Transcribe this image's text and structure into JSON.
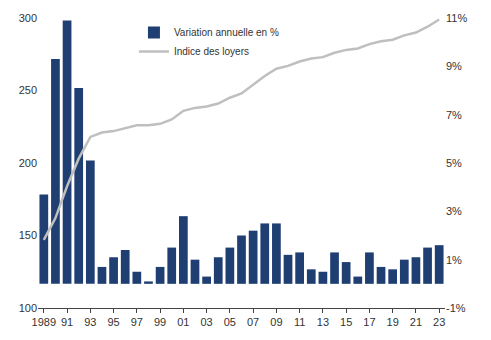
{
  "chart_data": {
    "type": "bar",
    "categories": [
      "1989",
      null,
      "91",
      null,
      "93",
      null,
      "95",
      null,
      "97",
      null,
      "99",
      null,
      "01",
      null,
      "03",
      null,
      "05",
      null,
      "07",
      null,
      "09",
      null,
      "11",
      null,
      "13",
      null,
      "15",
      null,
      "17",
      null,
      "19",
      null,
      "21",
      null,
      "23"
    ],
    "series": [
      {
        "name": "Variation annuelle en %",
        "type": "bar",
        "axis": "y2",
        "color": "#1F3F73",
        "values": [
          3.7,
          9.3,
          10.9,
          8.1,
          5.1,
          0.7,
          1.1,
          1.4,
          0.5,
          0.1,
          0.7,
          1.5,
          2.8,
          1.0,
          0.3,
          1.1,
          1.5,
          2.0,
          2.2,
          2.5,
          2.5,
          1.2,
          1.3,
          0.6,
          0.5,
          1.3,
          0.9,
          0.3,
          1.3,
          0.7,
          0.6,
          1.0,
          1.1,
          1.5,
          1.6
        ]
      },
      {
        "name": "Indice des loyers",
        "type": "line",
        "color": "#BFBFBF",
        "values": [
          147,
          162,
          184,
          203,
          218,
          221,
          222,
          224,
          226,
          226,
          227,
          230,
          236,
          238,
          239,
          241,
          245,
          248,
          254,
          260,
          265,
          267,
          270,
          272,
          273,
          276,
          278,
          279,
          282,
          284,
          285,
          288,
          290,
          294,
          299
        ]
      }
    ],
    "ylim": [
      100,
      300
    ],
    "yticks": [
      100,
      150,
      200,
      250,
      300
    ],
    "y2lim": [
      -1,
      11
    ],
    "y2ticks": [
      {
        "value": -1,
        "label": "-1%"
      },
      {
        "value": 1,
        "label": "1%"
      },
      {
        "value": 3,
        "label": "3%"
      },
      {
        "value": 5,
        "label": "5%"
      },
      {
        "value": 7,
        "label": "7%"
      },
      {
        "value": 9,
        "label": "9%"
      },
      {
        "value": 11,
        "label": "11%"
      }
    ],
    "grid": false,
    "legend": "top"
  }
}
